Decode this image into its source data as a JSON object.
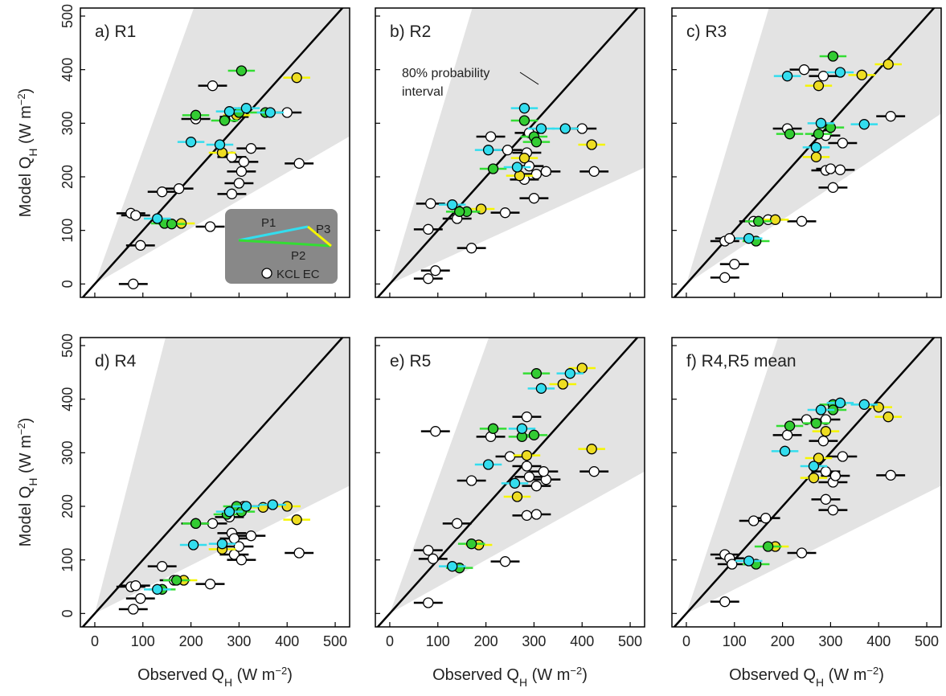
{
  "chart_data": [
    {
      "type": "scatter",
      "title": "a) R1",
      "xlim": [
        -30,
        530
      ],
      "ylim": [
        -25,
        515
      ],
      "xticks": [
        0,
        100,
        200,
        300,
        400,
        500
      ],
      "yticks": [
        0,
        100,
        200,
        300,
        400,
        500
      ],
      "show_xtick_labels": false,
      "show_ytick_labels": true,
      "ylabel": [
        "Model Q",
        "H",
        " (W m",
        "−2",
        ")"
      ],
      "interval": {
        "lower_slope": 0.52,
        "upper_slope": 2.5
      },
      "legend": true,
      "series": [
        {
          "name": "P1",
          "color": "#33ddee",
          "bar_color": "#33ddee",
          "xerr": 28,
          "x": [
            130,
            200,
            260,
            280,
            315,
            365
          ],
          "y": [
            122,
            265,
            260,
            322,
            328,
            320
          ]
        },
        {
          "name": "P2",
          "color": "#33cc33",
          "bar_color": "#33dd33",
          "xerr": 28,
          "x": [
            305,
            210,
            270,
            300,
            145,
            160,
            355
          ],
          "y": [
            398,
            315,
            305,
            320,
            113,
            112,
            320
          ]
        },
        {
          "name": "P3",
          "color": "#eedd22",
          "bar_color": "#f5f500",
          "xerr": 28,
          "x": [
            420,
            180,
            265,
            295
          ],
          "y": [
            385,
            113,
            245,
            315
          ]
        },
        {
          "name": "KCL EC",
          "color": "#ffffff",
          "bar_color": "#000000",
          "xerr": 30,
          "x": [
            80,
            75,
            85,
            95,
            140,
            175,
            210,
            245,
            240,
            285,
            290,
            300,
            305,
            310,
            325,
            285,
            400,
            425
          ],
          "y": [
            0,
            132,
            128,
            72,
            172,
            178,
            308,
            370,
            107,
            237,
            312,
            188,
            210,
            228,
            253,
            168,
            320,
            225
          ]
        }
      ]
    },
    {
      "type": "scatter",
      "title": "b) R2",
      "xlim": [
        -30,
        530
      ],
      "ylim": [
        -25,
        515
      ],
      "xticks": [
        0,
        100,
        200,
        300,
        400,
        500
      ],
      "yticks": [
        0,
        100,
        200,
        300,
        400,
        500
      ],
      "show_xtick_labels": false,
      "show_ytick_labels": false,
      "interval": {
        "lower_slope": 0.41,
        "upper_slope": 3.0
      },
      "annotation": [
        "80% probability",
        "interval"
      ],
      "series": [
        {
          "name": "P1",
          "color": "#33ddee",
          "bar_color": "#33ddee",
          "xerr": 28,
          "x": [
            280,
            205,
            265,
            315,
            365,
            130
          ],
          "y": [
            328,
            250,
            218,
            290,
            290,
            148
          ]
        },
        {
          "name": "P2",
          "color": "#33cc33",
          "bar_color": "#33dd33",
          "xerr": 28,
          "x": [
            280,
            300,
            215,
            160,
            145,
            305
          ],
          "y": [
            305,
            275,
            215,
            135,
            135,
            265
          ]
        },
        {
          "name": "P3",
          "color": "#eedd22",
          "bar_color": "#f5f500",
          "xerr": 28,
          "x": [
            420,
            190,
            270,
            280
          ],
          "y": [
            260,
            140,
            202,
            235
          ]
        },
        {
          "name": "KCL EC",
          "color": "#ffffff",
          "bar_color": "#000000",
          "xerr": 30,
          "x": [
            80,
            85,
            80,
            95,
            170,
            140,
            210,
            240,
            245,
            285,
            290,
            290,
            300,
            305,
            325,
            400,
            425,
            280
          ],
          "y": [
            102,
            150,
            10,
            25,
            67,
            122,
            275,
            133,
            250,
            245,
            282,
            220,
            160,
            205,
            210,
            290,
            210,
            195
          ]
        }
      ]
    },
    {
      "type": "scatter",
      "title": "c) R3",
      "xlim": [
        -30,
        530
      ],
      "ylim": [
        -25,
        515
      ],
      "xticks": [
        0,
        100,
        200,
        300,
        400,
        500
      ],
      "yticks": [
        0,
        100,
        200,
        300,
        400,
        500
      ],
      "show_xtick_labels": false,
      "show_ytick_labels": false,
      "interval": {
        "lower_slope": 0.6,
        "upper_slope": 3.0
      },
      "series": [
        {
          "name": "P1",
          "color": "#33ddee",
          "bar_color": "#33ddee",
          "xerr": 28,
          "x": [
            210,
            270,
            280,
            320,
            370,
            130
          ],
          "y": [
            388,
            255,
            300,
            395,
            298,
            85
          ]
        },
        {
          "name": "P2",
          "color": "#33cc33",
          "bar_color": "#33dd33",
          "xerr": 28,
          "x": [
            305,
            215,
            275,
            300,
            145,
            150
          ],
          "y": [
            425,
            280,
            280,
            292,
            80,
            117
          ]
        },
        {
          "name": "P3",
          "color": "#eedd22",
          "bar_color": "#f5f500",
          "xerr": 28,
          "x": [
            420,
            365,
            275,
            270,
            185
          ],
          "y": [
            410,
            390,
            370,
            237,
            120
          ]
        },
        {
          "name": "KCL EC",
          "color": "#ffffff",
          "bar_color": "#000000",
          "xerr": 30,
          "x": [
            80,
            90,
            80,
            100,
            140,
            170,
            210,
            245,
            240,
            285,
            290,
            290,
            300,
            305,
            325,
            320,
            425
          ],
          "y": [
            80,
            85,
            12,
            37,
            117,
            120,
            290,
            400,
            117,
            388,
            277,
            212,
            215,
            180,
            263,
            213,
            313
          ]
        }
      ]
    },
    {
      "type": "scatter",
      "title": "d) R4",
      "xlim": [
        -30,
        530
      ],
      "ylim": [
        -25,
        515
      ],
      "xticks": [
        0,
        100,
        200,
        300,
        400,
        500
      ],
      "yticks": [
        0,
        100,
        200,
        300,
        400,
        500
      ],
      "show_xtick_labels": true,
      "show_ytick_labels": true,
      "ylabel": [
        "Model Q",
        "H",
        " (W m",
        "−2",
        ")"
      ],
      "xlabel": [
        "Observed Q",
        "H",
        " (W m",
        "−2",
        ")"
      ],
      "interval": {
        "lower_slope": 0.45,
        "upper_slope": 3.5
      },
      "series": [
        {
          "name": "P1",
          "color": "#33ddee",
          "bar_color": "#33ddee",
          "xerr": 28,
          "x": [
            205,
            265,
            280,
            315,
            370,
            130
          ],
          "y": [
            128,
            130,
            190,
            200,
            203,
            45
          ]
        },
        {
          "name": "P2",
          "color": "#33cc33",
          "bar_color": "#33dd33",
          "xerr": 28,
          "x": [
            295,
            210,
            275,
            305,
            140,
            170
          ],
          "y": [
            200,
            168,
            185,
            190,
            45,
            62
          ]
        },
        {
          "name": "P3",
          "color": "#eedd22",
          "bar_color": "#f5f500",
          "xerr": 28,
          "x": [
            420,
            350,
            265,
            185,
            400
          ],
          "y": [
            175,
            198,
            120,
            62,
            200
          ]
        },
        {
          "name": "KCL EC",
          "color": "#ffffff",
          "bar_color": "#000000",
          "xerr": 30,
          "x": [
            75,
            85,
            80,
            95,
            140,
            165,
            210,
            240,
            245,
            285,
            290,
            290,
            300,
            305,
            325,
            310,
            425,
            280
          ],
          "y": [
            50,
            52,
            8,
            28,
            88,
            62,
            168,
            55,
            168,
            150,
            140,
            110,
            125,
            100,
            145,
            200,
            113,
            180
          ]
        }
      ]
    },
    {
      "type": "scatter",
      "title": "e) R5",
      "xlim": [
        -30,
        530
      ],
      "ylim": [
        -25,
        515
      ],
      "xticks": [
        0,
        100,
        200,
        300,
        400,
        500
      ],
      "yticks": [
        0,
        100,
        200,
        300,
        400,
        500
      ],
      "show_xtick_labels": true,
      "show_ytick_labels": false,
      "xlabel": [
        "Observed Q",
        "H",
        " (W m",
        "−2",
        ")"
      ],
      "interval": {
        "lower_slope": 0.5,
        "upper_slope": 2.5
      },
      "series": [
        {
          "name": "P1",
          "color": "#33ddee",
          "bar_color": "#33ddee",
          "xerr": 28,
          "x": [
            275,
            205,
            260,
            315,
            375,
            130
          ],
          "y": [
            345,
            278,
            243,
            420,
            448,
            88
          ]
        },
        {
          "name": "P2",
          "color": "#33cc33",
          "bar_color": "#33dd33",
          "xerr": 28,
          "x": [
            305,
            215,
            275,
            300,
            170,
            145
          ],
          "y": [
            448,
            345,
            330,
            333,
            130,
            85
          ]
        },
        {
          "name": "P3",
          "color": "#eedd22",
          "bar_color": "#f5f500",
          "xerr": 28,
          "x": [
            400,
            360,
            285,
            265,
            185,
            420
          ],
          "y": [
            458,
            428,
            295,
            218,
            128,
            307
          ]
        },
        {
          "name": "KCL EC",
          "color": "#ffffff",
          "bar_color": "#000000",
          "xerr": 30,
          "x": [
            80,
            90,
            80,
            95,
            140,
            170,
            210,
            240,
            250,
            285,
            285,
            290,
            305,
            305,
            325,
            320,
            425,
            285
          ],
          "y": [
            118,
            102,
            20,
            340,
            168,
            248,
            330,
            97,
            293,
            367,
            275,
            255,
            238,
            185,
            250,
            265,
            265,
            183
          ]
        }
      ]
    },
    {
      "type": "scatter",
      "title": "f) R4,R5 mean",
      "xlim": [
        -30,
        530
      ],
      "ylim": [
        -25,
        515
      ],
      "xticks": [
        0,
        100,
        200,
        300,
        400,
        500
      ],
      "yticks": [
        0,
        100,
        200,
        300,
        400,
        500
      ],
      "show_xtick_labels": true,
      "show_ytick_labels": false,
      "xlabel": [
        "Observed Q",
        "H",
        " (W m",
        "−2",
        ")"
      ],
      "interval": {
        "lower_slope": 0.45,
        "upper_slope": 2.7
      },
      "series": [
        {
          "name": "P1",
          "color": "#33ddee",
          "bar_color": "#33ddee",
          "xerr": 28,
          "x": [
            205,
            265,
            280,
            320,
            370,
            130
          ],
          "y": [
            303,
            275,
            380,
            393,
            390,
            98
          ]
        },
        {
          "name": "P2",
          "color": "#33cc33",
          "bar_color": "#33dd33",
          "xerr": 28,
          "x": [
            305,
            215,
            270,
            305,
            170,
            145
          ],
          "y": [
            390,
            350,
            355,
            380,
            125,
            92
          ]
        },
        {
          "name": "P3",
          "color": "#eedd22",
          "bar_color": "#f5f500",
          "xerr": 28,
          "x": [
            420,
            275,
            265,
            185,
            290,
            400
          ],
          "y": [
            367,
            290,
            253,
            125,
            340,
            385
          ]
        },
        {
          "name": "KCL EC",
          "color": "#ffffff",
          "bar_color": "#000000",
          "xerr": 30,
          "x": [
            80,
            90,
            80,
            95,
            140,
            165,
            210,
            240,
            250,
            285,
            290,
            290,
            305,
            305,
            325,
            310,
            425,
            290
          ],
          "y": [
            110,
            103,
            22,
            92,
            173,
            178,
            333,
            113,
            362,
            322,
            265,
            213,
            193,
            245,
            293,
            257,
            258,
            362
          ]
        }
      ]
    }
  ]
}
